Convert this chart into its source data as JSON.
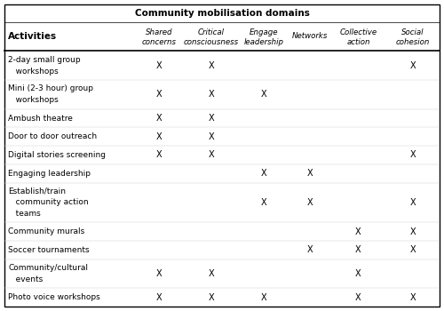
{
  "title": "Community mobilisation domains",
  "activities": [
    [
      "2-day small group",
      "   workshops"
    ],
    [
      "Mini (2-3 hour) group",
      "   workshops"
    ],
    [
      "Ambush theatre"
    ],
    [
      "Door to door outreach"
    ],
    [
      "Digital stories screening"
    ],
    [
      "Engaging leadership"
    ],
    [
      "Establish/train",
      "   community action",
      "   teams"
    ],
    [
      "Community murals"
    ],
    [
      "Soccer tournaments"
    ],
    [
      "Community/cultural",
      "   events"
    ],
    [
      "Photo voice workshops"
    ]
  ],
  "col_headers_line1": [
    "Shared",
    "Critical",
    "Engage",
    "Networks",
    "Collective",
    "Social"
  ],
  "col_headers_line2": [
    "concerns",
    "consciousness",
    "leadership",
    "",
    "action",
    "cohesion"
  ],
  "marks": [
    [
      1,
      1,
      0,
      0,
      0,
      1
    ],
    [
      1,
      1,
      1,
      0,
      0,
      0
    ],
    [
      1,
      1,
      0,
      0,
      0,
      0
    ],
    [
      1,
      1,
      0,
      0,
      0,
      0
    ],
    [
      1,
      1,
      0,
      0,
      0,
      1
    ],
    [
      0,
      0,
      1,
      1,
      0,
      0
    ],
    [
      0,
      0,
      1,
      1,
      0,
      1
    ],
    [
      0,
      0,
      0,
      0,
      1,
      1
    ],
    [
      0,
      0,
      0,
      1,
      1,
      1
    ],
    [
      1,
      1,
      0,
      0,
      1,
      0
    ],
    [
      1,
      1,
      1,
      0,
      1,
      1
    ]
  ],
  "bg_color": "#ffffff",
  "border_color": "#000000",
  "text_color": "#000000",
  "activity_lines": [
    2,
    2,
    1,
    1,
    1,
    1,
    3,
    1,
    1,
    2,
    1
  ]
}
